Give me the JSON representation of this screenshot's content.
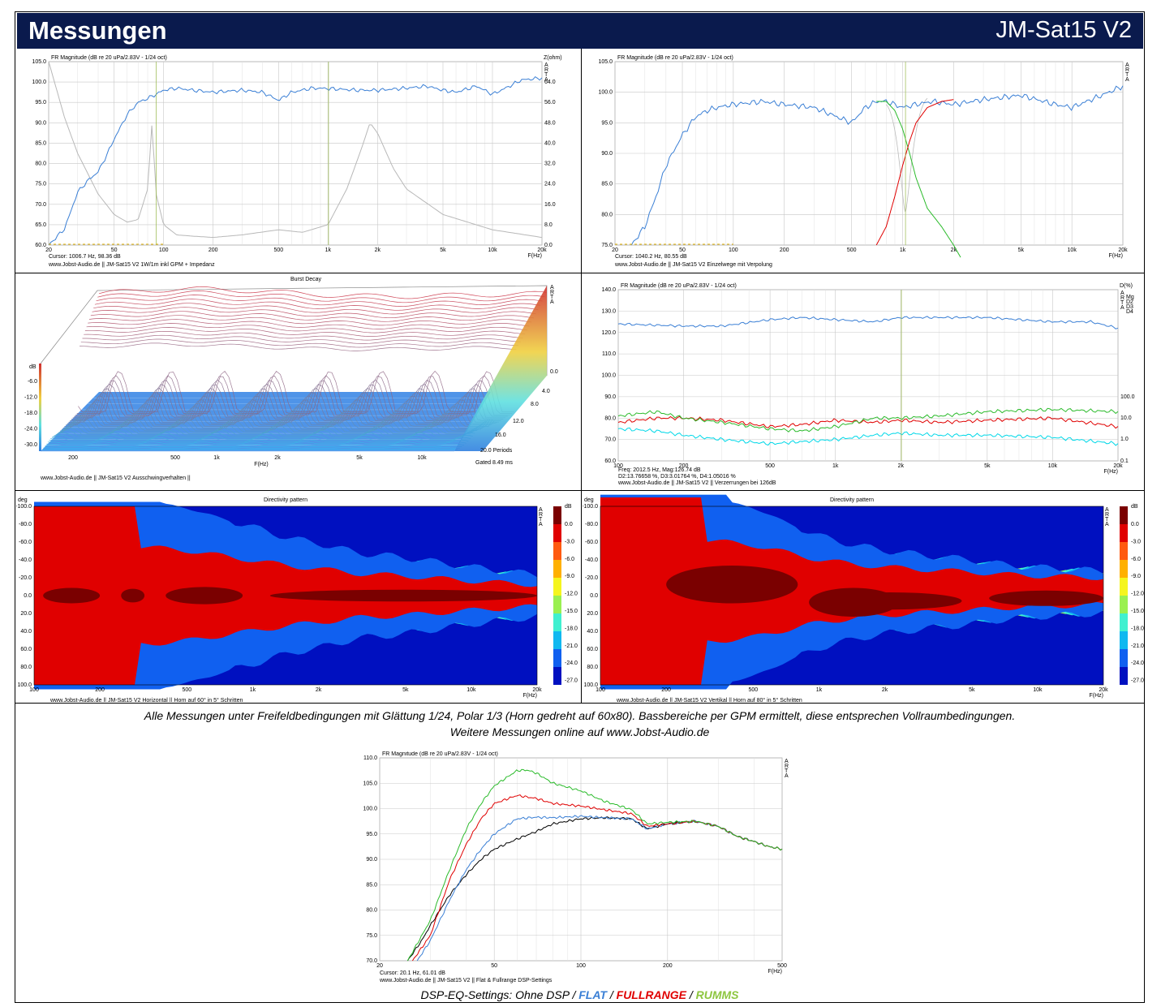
{
  "header": {
    "title": "Messungen",
    "model": "JM-Sat15 V2"
  },
  "caption": {
    "line1": "Alle Messungen unter Freifeldbedingungen mit Glättung 1/24, Polar 1/3 (Horn gedreht auf 60x80). Bassbereiche per GPM ermittelt, diese entsprechen Vollraumbedingungen.",
    "line2": "Weitere Messungen online auf www.Jobst-Audio.de"
  },
  "dsp_caption": {
    "prefix": "DSP-EQ-Settings: Ohne DSP / ",
    "flat": "FLAT",
    "sep1": " / ",
    "fullrange": "FULLRANGE",
    "sep2": " / ",
    "rumms": "RUMMS"
  },
  "colors": {
    "banner": "#0a1a4d",
    "flat": "#3a7fd5",
    "fullrange": "#e00000",
    "rumms": "#8dc63f"
  },
  "panels": {
    "fr1": {
      "title": "FR Magnitude (dB re 20 uPa/2.83V - 1/24 oct)",
      "right_axis": "Z(ohm)",
      "arta": "A R T A",
      "footer1": "Cursor: 1006.7 Hz, 98.36 dB",
      "footer2": "www.Jobst-Audio.de  ||  JM-Sat15 V2  1W/1m  inkl GPM  + Impedanz",
      "xunit": "F(Hz)",
      "yticks": [
        "105.0",
        "100.0",
        "95.0",
        "90.0",
        "85.0",
        "80.0",
        "75.0",
        "70.0",
        "65.0",
        "60.0"
      ],
      "rticks": [
        "64.0",
        "56.0",
        "48.0",
        "40.0",
        "32.0",
        "24.0",
        "16.0",
        "8.0",
        "0.0"
      ],
      "xticks": [
        "20",
        "50",
        "100",
        "200",
        "500",
        "1k",
        "2k",
        "5k",
        "10k",
        "20k"
      ]
    },
    "fr2": {
      "title": "FR Magnitude (dB re 20 uPa/2.83V - 1/24 oct)",
      "arta": "A R T A",
      "footer1": "Cursor: 1040.2 Hz, 80.55 dB",
      "footer2": "www.Jobst-Audio.de  ||  JM-Sat15 V2  Einzelwege mit Verpolung",
      "xunit": "F(Hz)",
      "yticks": [
        "105.0",
        "100.0",
        "95.0",
        "90.0",
        "85.0",
        "80.0",
        "75.0"
      ],
      "xticks": [
        "20",
        "50",
        "100",
        "200",
        "500",
        "1k",
        "2k",
        "5k",
        "10k",
        "20k"
      ]
    },
    "burst": {
      "title": "Burst Decay",
      "arta": "A R T A",
      "zlabel": "dB",
      "zticks": [
        "-6.0",
        "-12.0",
        "-18.0",
        "-24.0",
        "-30.0"
      ],
      "periods": [
        "0.0",
        "4.0",
        "8.0",
        "12.0",
        "16.0",
        "20.0 Periods"
      ],
      "xticks": [
        "200",
        "500",
        "1k",
        "2k",
        "5k",
        "10k"
      ],
      "xunit": "F(Hz)",
      "gated": "Gated 8.49 ms",
      "footer": "www.Jobst-Audio.de  ||  JM-Sat15 V2  Ausschwingverhalten  ||"
    },
    "dist": {
      "title": "FR Magnitude (dB re 20 uPa/2.83V - 1/24 oct)",
      "right_axis": "D(%)",
      "legend": [
        "Mg",
        "D2",
        "D3",
        "D4"
      ],
      "arta": "A R T A",
      "footer1": "Freq: 2012.5 Hz, Mag:126.74 dB",
      "footer2": "D2:13.76658 %, D3:3.01764 %, D4:1.05016 %",
      "footer3": "www.Jobst-Audio.de  ||  JM-Sat15 V2  ||  Verzerrungen bei 126dB",
      "xunit": "F(Hz)",
      "yticks": [
        "140.0",
        "130.0",
        "120.0",
        "110.0",
        "100.0",
        "90.0",
        "80.0",
        "70.0",
        "60.0"
      ],
      "rticks": [
        "100.0",
        "10.0",
        "1.0",
        "0.1"
      ],
      "xticks": [
        "100",
        "200",
        "500",
        "1k",
        "2k",
        "5k",
        "10k",
        "20k"
      ]
    },
    "dirh": {
      "title": "Directivity pattern",
      "yunit": "deg",
      "arta": "A R T A",
      "yticks": [
        "-100.0",
        "-80.0",
        "-60.0",
        "-40.0",
        "-20.0",
        "0.0",
        "20.0",
        "40.0",
        "60.0",
        "80.0",
        "100.0"
      ],
      "xticks": [
        "100",
        "200",
        "500",
        "1k",
        "2k",
        "5k",
        "10k",
        "20k"
      ],
      "xunit": "F(Hz)",
      "footer": "www.Jobst-Audio.de  ||  JM-Sat15 V2  Horizontal  ||  Horn auf 60°  in 5° Schritten",
      "scale_unit": "dB",
      "scale": [
        "0.0",
        "-3.0",
        "-6.0",
        "-9.0",
        "-12.0",
        "-15.0",
        "-18.0",
        "-21.0",
        "-24.0",
        "-27.0"
      ]
    },
    "dirv": {
      "title": "Directivity pattern",
      "yunit": "deg",
      "arta": "A R T A",
      "yticks": [
        "-100.0",
        "-80.0",
        "-60.0",
        "-40.0",
        "-20.0",
        "0.0",
        "20.0",
        "40.0",
        "60.0",
        "80.0",
        "100.0"
      ],
      "xticks": [
        "100",
        "200",
        "500",
        "1k",
        "2k",
        "5k",
        "10k",
        "20k"
      ],
      "xunit": "F(Hz)",
      "footer": "www.Jobst-Audio.de  ||  JM-Sat15 V2  Vertikal  ||  Horn auf 80°  in 5° Schritten",
      "scale_unit": "dB",
      "scale": [
        "0.0",
        "-3.0",
        "-6.0",
        "-9.0",
        "-12.0",
        "-15.0",
        "-18.0",
        "-21.0",
        "-24.0",
        "-27.0"
      ]
    },
    "dsp": {
      "title": "FR Magnitude (dB re 20 uPa/2.83V - 1/24 oct)",
      "arta": "A R T A",
      "footer1": "Cursor: 20.1 Hz, 61.01 dB",
      "footer2": "www.Jobst-Audio.de  ||  JM-Sat15 V2  ||  Flat & Fullrange DSP-Settings",
      "xunit": "F(Hz)",
      "yticks": [
        "110.0",
        "105.0",
        "100.0",
        "95.0",
        "90.0",
        "85.0",
        "80.0",
        "75.0",
        "70.0"
      ],
      "xticks": [
        "20",
        "50",
        "100",
        "200",
        "500"
      ]
    }
  },
  "chart_data": [
    {
      "type": "line",
      "title": "FR Magnitude (dB re 20 uPa/2.83V - 1/24 oct)",
      "xlabel": "F(Hz)",
      "ylabel": "",
      "xscale": "log",
      "xlim": [
        20,
        20000
      ],
      "ylim": [
        60,
        105
      ],
      "y2label": "Z(ohm)",
      "y2lim": [
        0,
        72
      ],
      "series": [
        {
          "color": "#3a7fd5",
          "x": [
            20,
            25,
            30,
            35,
            40,
            45,
            50,
            60,
            70,
            80,
            90,
            100,
            120,
            150,
            200,
            300,
            400,
            500,
            600,
            800,
            1000,
            1500,
            2000,
            3000,
            4000,
            5000,
            6000,
            8000,
            10000,
            12000,
            15000,
            20000
          ],
          "values": [
            60,
            64,
            73,
            76,
            78,
            82,
            86,
            92,
            95,
            96,
            97,
            98,
            98.5,
            98,
            97.5,
            98,
            97.5,
            95.5,
            97.5,
            98.5,
            98.4,
            98,
            98,
            98.5,
            99,
            98,
            97.5,
            99,
            97,
            98.5,
            100.5,
            101
          ]
        },
        {
          "color": "#b8b8b8",
          "axis": "right",
          "x": [
            20,
            25,
            30,
            40,
            50,
            60,
            70,
            80,
            85,
            90,
            100,
            120,
            150,
            200,
            300,
            500,
            700,
            1000,
            1300,
            1600,
            1800,
            2000,
            2500,
            3000,
            5000,
            10000,
            20000
          ],
          "values": [
            72,
            50,
            36,
            20,
            12,
            9,
            10,
            22,
            48,
            20,
            8,
            4,
            3.5,
            3,
            4,
            6,
            5,
            8,
            22,
            38,
            48,
            44,
            30,
            22,
            12,
            6,
            3
          ]
        }
      ]
    },
    {
      "type": "line",
      "title": "FR Magnitude (dB re 20 uPa/2.83V - 1/24 oct)",
      "xlabel": "F(Hz)",
      "ylabel": "",
      "xscale": "log",
      "xlim": [
        20,
        20000
      ],
      "ylim": [
        75,
        106
      ],
      "series": [
        {
          "color": "#3a7fd5",
          "x": [
            25,
            30,
            35,
            40,
            50,
            60,
            70,
            80,
            100,
            150,
            200,
            300,
            500,
            600,
            700,
            800,
            1000,
            1200,
            1500,
            2000,
            3000,
            5000,
            8000,
            10000,
            15000,
            20000
          ],
          "values": [
            75,
            78,
            83,
            88,
            93,
            96,
            97,
            97.5,
            98,
            98.5,
            98,
            97.5,
            95,
            97.5,
            98.5,
            98.5,
            97.5,
            98,
            98.5,
            98,
            98.8,
            99.5,
            98,
            97.5,
            99.5,
            101
          ]
        },
        {
          "color": "#2bbb2b",
          "x": [
            700,
            800,
            900,
            1000,
            1100,
            1200,
            1400,
            1700,
            2000,
            2200
          ],
          "values": [
            98.5,
            98.5,
            97,
            94,
            90,
            86,
            81,
            78,
            75,
            73
          ]
        },
        {
          "color": "#e00000",
          "x": [
            700,
            800,
            900,
            1000,
            1100,
            1200,
            1400,
            1700,
            2000
          ],
          "values": [
            75,
            78,
            83,
            88,
            92,
            95,
            97.5,
            98.5,
            98.8
          ]
        }
      ]
    },
    {
      "type": "area",
      "title": "Burst Decay",
      "xlabel": "F(Hz)",
      "ylabel": "dB",
      "xscale": "log",
      "xlim": [
        150,
        20000
      ],
      "ylim": [
        -30,
        0
      ],
      "zlabel": "Periods",
      "zlim": [
        0,
        20
      ]
    },
    {
      "type": "line",
      "title": "FR Magnitude (dB re 20 uPa/2.83V - 1/24 oct)",
      "xlabel": "F(Hz)",
      "ylabel": "",
      "xscale": "log",
      "xlim": [
        100,
        20000
      ],
      "ylim": [
        60,
        140
      ],
      "y2label": "D(%)",
      "y2scale": "log",
      "y2lim": [
        0.1,
        100
      ],
      "series": [
        {
          "name": "Mg",
          "color": "#3a7fd5",
          "x": [
            100,
            200,
            300,
            500,
            700,
            1000,
            1500,
            2000,
            3000,
            5000,
            7000,
            10000,
            15000,
            20000
          ],
          "values": [
            124,
            123,
            123,
            126,
            127,
            126,
            125,
            127,
            127,
            127,
            126,
            125,
            125,
            122
          ]
        },
        {
          "name": "D2",
          "color": "#e00000",
          "x": [
            100,
            150,
            200,
            300,
            500,
            700,
            1000,
            1500,
            2000,
            3000,
            5000,
            10000,
            20000
          ],
          "values": [
            78,
            80,
            80,
            79,
            76,
            77,
            79,
            78,
            79,
            78,
            79,
            80,
            76
          ]
        },
        {
          "name": "D3",
          "color": "#2bbb2b",
          "x": [
            100,
            150,
            200,
            300,
            500,
            700,
            1000,
            1500,
            2000,
            3000,
            5000,
            10000,
            20000
          ],
          "values": [
            81,
            83,
            80,
            78,
            75,
            74,
            76,
            80,
            80,
            81,
            83,
            84,
            83
          ]
        },
        {
          "name": "D4",
          "color": "#00d8e8",
          "x": [
            100,
            150,
            200,
            300,
            500,
            700,
            1000,
            1500,
            2000,
            3000,
            5000,
            10000,
            20000
          ],
          "values": [
            75,
            74,
            72,
            70,
            68,
            69,
            70,
            72,
            73,
            72,
            72,
            71,
            68
          ]
        }
      ]
    },
    {
      "type": "heatmap",
      "title": "Directivity pattern",
      "xlabel": "F(Hz)",
      "ylabel": "deg",
      "xscale": "log",
      "xlim": [
        100,
        20000
      ],
      "ylim": [
        -100,
        100
      ],
      "zlim": [
        -27,
        0
      ]
    },
    {
      "type": "heatmap",
      "title": "Directivity pattern",
      "xlabel": "F(Hz)",
      "ylabel": "deg",
      "xscale": "log",
      "xlim": [
        100,
        20000
      ],
      "ylim": [
        -100,
        100
      ],
      "zlim": [
        -27,
        0
      ]
    },
    {
      "type": "line",
      "title": "FR Magnitude (dB re 20 uPa/2.83V - 1/24 oct)",
      "xlabel": "F(Hz)",
      "ylabel": "",
      "xscale": "log",
      "xlim": [
        20,
        500
      ],
      "ylim": [
        70,
        110
      ],
      "series": [
        {
          "name": "Ohne DSP",
          "color": "#000000",
          "x": [
            25,
            28,
            30,
            35,
            40,
            45,
            50,
            60,
            70,
            80,
            100,
            120,
            150,
            170,
            200,
            250,
            300,
            350,
            400,
            450,
            500
          ],
          "values": [
            70,
            74,
            77,
            83,
            87,
            90,
            92,
            94,
            95.5,
            97,
            98,
            98.2,
            98,
            96,
            97,
            97.5,
            96.5,
            94.5,
            93.5,
            92.5,
            92
          ]
        },
        {
          "name": "FLAT",
          "color": "#3a7fd5",
          "x": [
            27,
            30,
            35,
            40,
            45,
            50,
            60,
            70,
            80,
            100,
            120,
            150,
            170,
            200,
            250,
            300,
            350,
            400,
            450,
            500
          ],
          "values": [
            70,
            74,
            82,
            88,
            92,
            95,
            98,
            98.3,
            98.2,
            98.5,
            98.2,
            98,
            96,
            97,
            97.5,
            96.5,
            94.5,
            93.5,
            92.5,
            92
          ]
        },
        {
          "name": "FULLRANGE",
          "color": "#e00000",
          "x": [
            26,
            30,
            35,
            40,
            45,
            50,
            60,
            70,
            80,
            100,
            120,
            150,
            170,
            200,
            250,
            300,
            350,
            400,
            450,
            500
          ],
          "values": [
            70,
            75,
            86,
            93,
            98,
            101,
            102.6,
            102,
            101,
            100.5,
            99.8,
            99,
            96.5,
            97,
            97.5,
            96.5,
            94.5,
            93.5,
            92.5,
            92
          ]
        },
        {
          "name": "RUMMS",
          "color": "#2bbb2b",
          "x": [
            25,
            30,
            35,
            40,
            45,
            50,
            60,
            65,
            70,
            80,
            100,
            120,
            150,
            170,
            200,
            250,
            300,
            350,
            400,
            450,
            500
          ],
          "values": [
            70,
            78,
            88,
            96,
            101,
            104.5,
            107.5,
            107.6,
            107,
            105,
            103.5,
            101.5,
            99.8,
            97,
            97.3,
            97.5,
            96.5,
            94.5,
            93.5,
            92.5,
            92
          ]
        }
      ]
    }
  ]
}
